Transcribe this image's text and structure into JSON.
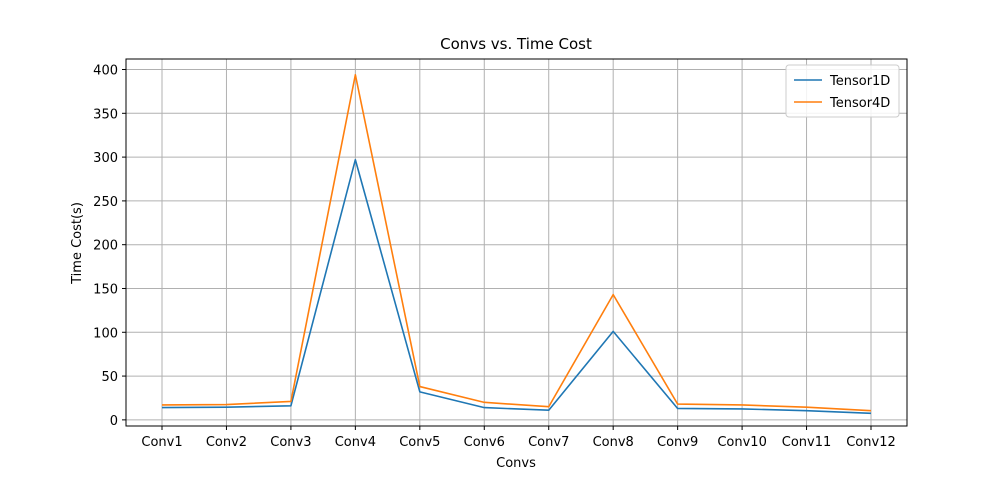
{
  "chart_data": {
    "type": "line",
    "title": "Convs vs. Time Cost",
    "xlabel": "Convs",
    "ylabel": "Time Cost(s)",
    "categories": [
      "Conv1",
      "Conv2",
      "Conv3",
      "Conv4",
      "Conv5",
      "Conv6",
      "Conv7",
      "Conv8",
      "Conv9",
      "Conv10",
      "Conv11",
      "Conv12"
    ],
    "ylim": [
      -7,
      412
    ],
    "yticks": [
      0,
      50,
      100,
      150,
      200,
      250,
      300,
      350,
      400
    ],
    "grid": true,
    "legend_position": "top-right",
    "series": [
      {
        "name": "Tensor1D",
        "color": "#1f77b4",
        "values": [
          14,
          14.5,
          16,
          297,
          32,
          14,
          11,
          101,
          13,
          12.5,
          10.5,
          7.5
        ]
      },
      {
        "name": "Tensor4D",
        "color": "#ff7f0e",
        "values": [
          17,
          17.5,
          21,
          394,
          38,
          20,
          15,
          143,
          18,
          17,
          14.5,
          10.5
        ]
      }
    ]
  }
}
